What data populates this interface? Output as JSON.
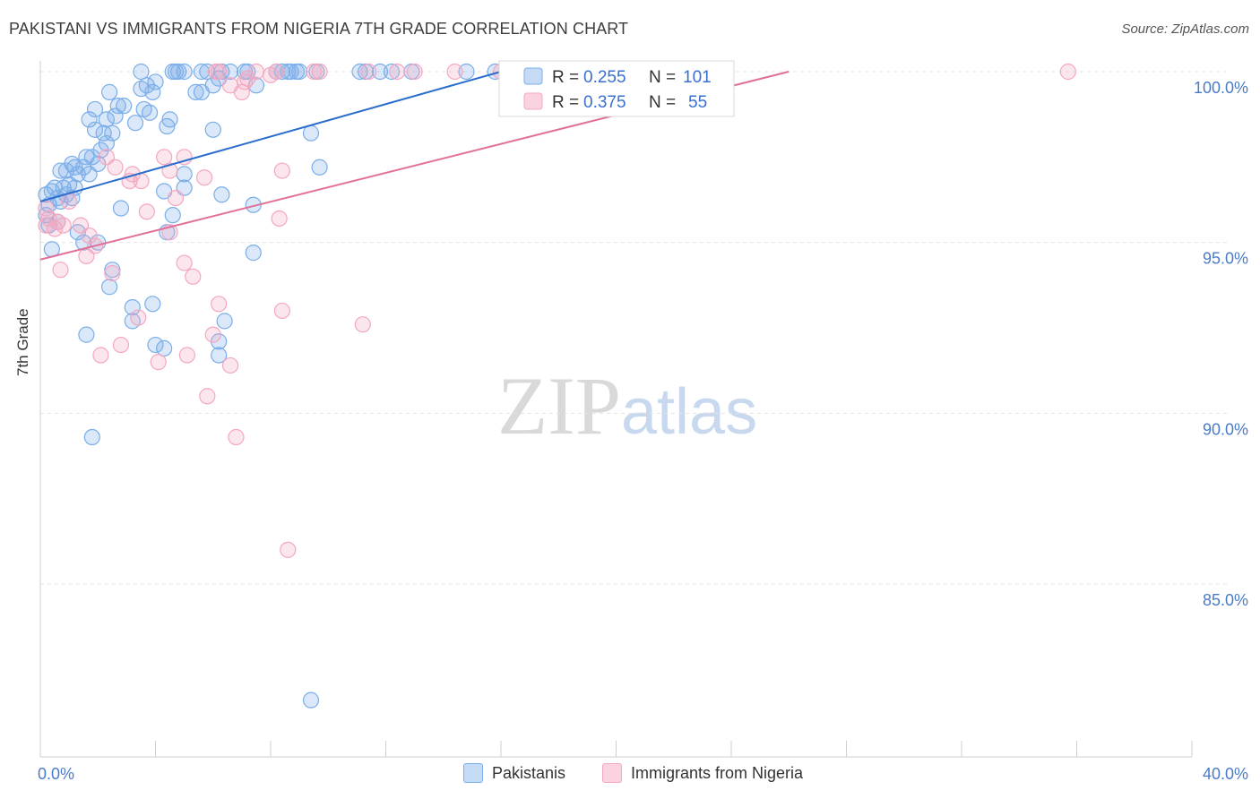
{
  "chart_data": {
    "type": "scatter",
    "title": "PAKISTANI VS IMMIGRANTS FROM NIGERIA 7TH GRADE CORRELATION CHART",
    "source": "Source: ZipAtlas.com",
    "xlabel": "",
    "ylabel": "7th Grade",
    "xlim": [
      0,
      40
    ],
    "ylim": [
      80.5,
      100.5
    ],
    "x_tick_labels": [
      "0.0%",
      "40.0%"
    ],
    "y_ticks": [
      85,
      90,
      95,
      100
    ],
    "y_tick_labels": [
      "85.0%",
      "90.0%",
      "95.0%",
      "100.0%"
    ],
    "grid": true,
    "watermark": {
      "zip": "ZIP",
      "atlas": "atlas"
    },
    "legend": [
      {
        "r_label": "R =",
        "r_value": "0.255",
        "n_label": "N =",
        "n_value": "101"
      },
      {
        "r_label": "R =",
        "r_value": "0.375",
        "n_label": "N =",
        "n_value": "55"
      }
    ],
    "series": [
      {
        "name": "Pakistanis",
        "color": "#7aaee8",
        "line_color": "#2a6dcc",
        "trend": {
          "x0": 0.0,
          "y0": 96.2,
          "x1": 16.0,
          "y1": 100.0
        },
        "points": [
          [
            0.2,
            96.4
          ],
          [
            0.3,
            96.1
          ],
          [
            0.4,
            96.5
          ],
          [
            0.2,
            95.8
          ],
          [
            0.5,
            96.6
          ],
          [
            0.6,
            96.3
          ],
          [
            0.7,
            96.2
          ],
          [
            0.8,
            96.6
          ],
          [
            0.3,
            95.5
          ],
          [
            0.4,
            94.8
          ],
          [
            0.6,
            95.6
          ],
          [
            0.9,
            96.4
          ],
          [
            1.0,
            96.7
          ],
          [
            1.1,
            96.3
          ],
          [
            1.2,
            96.6
          ],
          [
            0.7,
            97.1
          ],
          [
            0.9,
            97.1
          ],
          [
            1.2,
            97.2
          ],
          [
            1.5,
            97.2
          ],
          [
            1.1,
            97.3
          ],
          [
            1.3,
            97.0
          ],
          [
            1.7,
            97.0
          ],
          [
            1.8,
            97.5
          ],
          [
            2.0,
            97.3
          ],
          [
            1.6,
            97.5
          ],
          [
            2.1,
            97.7
          ],
          [
            2.3,
            97.9
          ],
          [
            2.5,
            98.2
          ],
          [
            2.2,
            98.2
          ],
          [
            1.9,
            98.3
          ],
          [
            1.7,
            98.6
          ],
          [
            2.3,
            98.6
          ],
          [
            2.6,
            98.7
          ],
          [
            2.7,
            99.0
          ],
          [
            2.9,
            99.0
          ],
          [
            1.9,
            98.9
          ],
          [
            2.4,
            99.4
          ],
          [
            3.6,
            98.9
          ],
          [
            3.8,
            98.8
          ],
          [
            3.3,
            98.5
          ],
          [
            4.4,
            98.4
          ],
          [
            4.5,
            98.6
          ],
          [
            3.5,
            99.5
          ],
          [
            3.7,
            99.6
          ],
          [
            3.9,
            99.4
          ],
          [
            4.0,
            99.7
          ],
          [
            5.4,
            99.4
          ],
          [
            5.6,
            99.4
          ],
          [
            6.0,
            99.6
          ],
          [
            6.2,
            99.8
          ],
          [
            3.5,
            100.0
          ],
          [
            4.6,
            100.0
          ],
          [
            4.7,
            100.0
          ],
          [
            4.8,
            100.0
          ],
          [
            5.0,
            100.0
          ],
          [
            5.6,
            100.0
          ],
          [
            5.8,
            100.0
          ],
          [
            6.3,
            100.0
          ],
          [
            6.6,
            100.0
          ],
          [
            7.1,
            100.0
          ],
          [
            7.2,
            100.0
          ],
          [
            8.2,
            100.0
          ],
          [
            8.4,
            100.0
          ],
          [
            8.6,
            100.0
          ],
          [
            8.7,
            100.0
          ],
          [
            9.0,
            100.0
          ],
          [
            8.9,
            100.0
          ],
          [
            7.5,
            99.6
          ],
          [
            9.6,
            100.0
          ],
          [
            11.1,
            100.0
          ],
          [
            11.3,
            100.0
          ],
          [
            12.2,
            100.0
          ],
          [
            11.8,
            100.0
          ],
          [
            12.9,
            100.0
          ],
          [
            15.8,
            100.0
          ],
          [
            14.8,
            100.0
          ],
          [
            6.0,
            98.3
          ],
          [
            9.4,
            98.2
          ],
          [
            9.7,
            97.2
          ],
          [
            5.0,
            97.0
          ],
          [
            4.3,
            96.5
          ],
          [
            5.0,
            96.6
          ],
          [
            6.3,
            96.4
          ],
          [
            7.4,
            96.1
          ],
          [
            2.8,
            96.0
          ],
          [
            4.6,
            95.8
          ],
          [
            4.4,
            95.3
          ],
          [
            1.3,
            95.3
          ],
          [
            2.0,
            95.0
          ],
          [
            1.5,
            95.0
          ],
          [
            7.4,
            94.7
          ],
          [
            2.5,
            94.2
          ],
          [
            2.4,
            93.7
          ],
          [
            3.2,
            93.1
          ],
          [
            3.9,
            93.2
          ],
          [
            3.2,
            92.7
          ],
          [
            6.4,
            92.7
          ],
          [
            1.6,
            92.3
          ],
          [
            4.0,
            92.0
          ],
          [
            4.3,
            91.9
          ],
          [
            6.2,
            92.1
          ],
          [
            6.2,
            91.7
          ],
          [
            1.8,
            89.3
          ],
          [
            9.4,
            81.6
          ]
        ]
      },
      {
        "name": "Immigrants from Nigeria",
        "color": "#f4a7c0",
        "line_color": "#e06f99",
        "trend": {
          "x0": 0.0,
          "y0": 94.5,
          "x1": 26.0,
          "y1": 100.0
        },
        "points": [
          [
            0.2,
            95.5
          ],
          [
            0.3,
            95.7
          ],
          [
            0.5,
            95.4
          ],
          [
            0.6,
            95.6
          ],
          [
            0.2,
            96.0
          ],
          [
            0.8,
            95.5
          ],
          [
            1.0,
            96.2
          ],
          [
            1.4,
            95.5
          ],
          [
            0.7,
            94.2
          ],
          [
            1.6,
            94.6
          ],
          [
            1.9,
            94.9
          ],
          [
            1.7,
            95.2
          ],
          [
            2.3,
            97.5
          ],
          [
            2.6,
            97.2
          ],
          [
            3.1,
            96.8
          ],
          [
            3.2,
            97.0
          ],
          [
            3.5,
            96.8
          ],
          [
            3.7,
            95.9
          ],
          [
            4.3,
            97.5
          ],
          [
            4.5,
            97.1
          ],
          [
            4.7,
            96.3
          ],
          [
            4.5,
            95.3
          ],
          [
            5.0,
            97.5
          ],
          [
            5.7,
            96.9
          ],
          [
            5.0,
            94.4
          ],
          [
            5.3,
            94.0
          ],
          [
            6.1,
            100.0
          ],
          [
            6.2,
            100.0
          ],
          [
            6.6,
            99.6
          ],
          [
            7.0,
            99.4
          ],
          [
            7.1,
            99.7
          ],
          [
            7.5,
            100.0
          ],
          [
            7.2,
            99.8
          ],
          [
            8.0,
            99.9
          ],
          [
            8.2,
            100.0
          ],
          [
            9.5,
            100.0
          ],
          [
            9.7,
            100.0
          ],
          [
            11.4,
            100.0
          ],
          [
            12.4,
            100.0
          ],
          [
            13.0,
            100.0
          ],
          [
            14.4,
            100.0
          ],
          [
            16.0,
            100.0
          ],
          [
            35.7,
            100.0
          ],
          [
            8.4,
            97.1
          ],
          [
            8.3,
            95.7
          ],
          [
            2.5,
            94.1
          ],
          [
            3.4,
            92.8
          ],
          [
            2.8,
            92.0
          ],
          [
            2.1,
            91.7
          ],
          [
            4.1,
            91.5
          ],
          [
            5.1,
            91.7
          ],
          [
            6.0,
            92.3
          ],
          [
            6.2,
            93.2
          ],
          [
            6.6,
            91.4
          ],
          [
            5.8,
            90.5
          ],
          [
            6.8,
            89.3
          ],
          [
            8.4,
            93.0
          ],
          [
            11.2,
            92.6
          ],
          [
            8.6,
            86.0
          ]
        ]
      }
    ]
  },
  "bottom_legend": [
    "Pakistanis",
    "Immigrants from Nigeria"
  ]
}
